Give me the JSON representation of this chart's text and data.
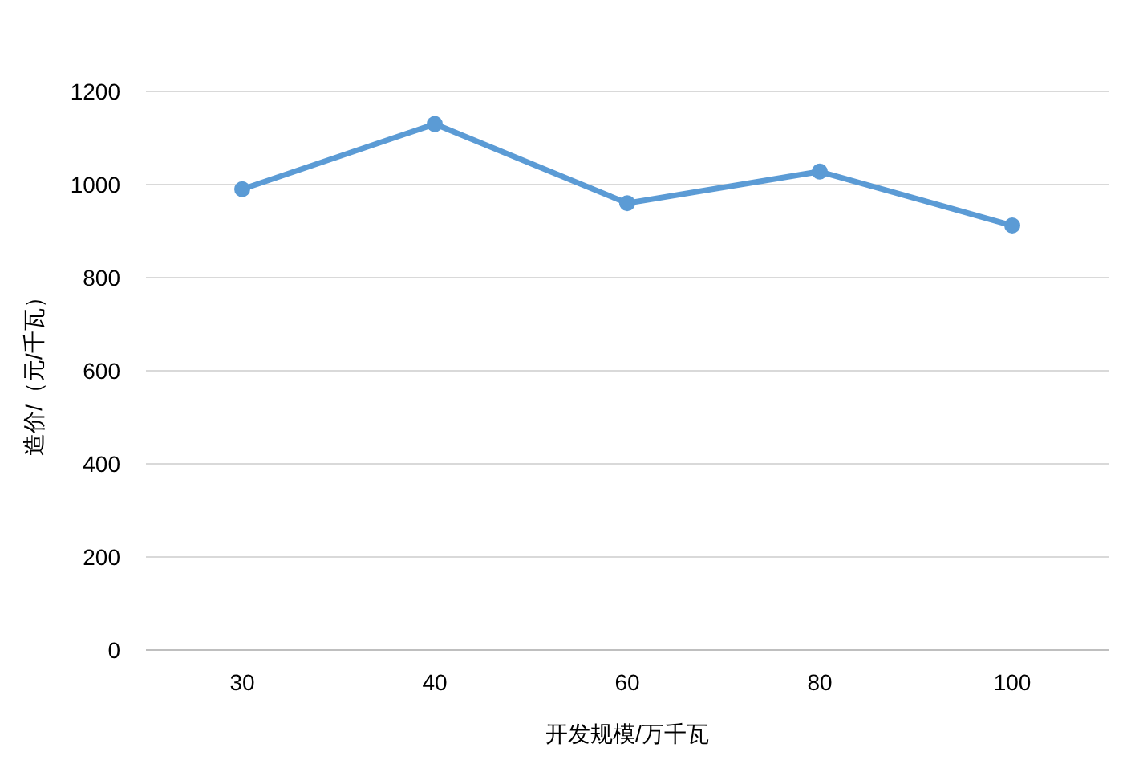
{
  "chart_data": {
    "type": "line",
    "xlabel": "开发规模/万千瓦",
    "ylabel": "造价/（元/千瓦）",
    "categories": [
      "30",
      "40",
      "60",
      "80",
      "100"
    ],
    "series": [
      {
        "color": "#5b9bd5",
        "values": [
          990,
          1130,
          960,
          1028,
          912
        ]
      }
    ],
    "ylim": [
      0,
      1200
    ],
    "yticks": [
      0,
      200,
      400,
      600,
      800,
      1000,
      1200
    ],
    "grid": "y",
    "marker": "circle",
    "line_style": "solid"
  }
}
